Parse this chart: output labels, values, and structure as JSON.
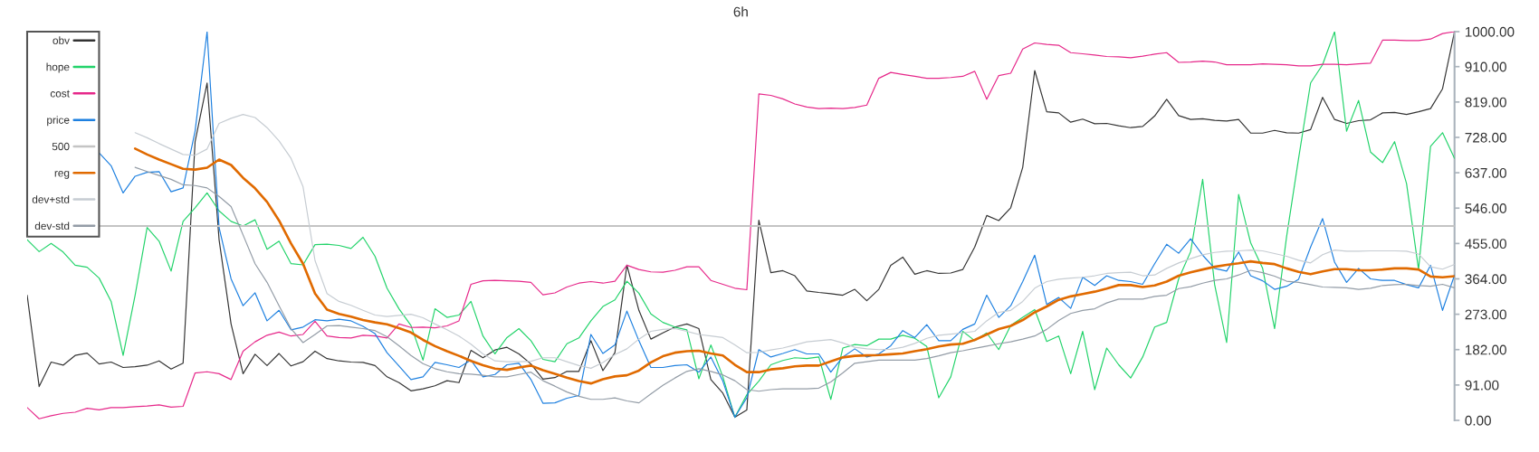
{
  "chart_data": {
    "type": "line",
    "title": "6h",
    "categories": [
      null,
      null,
      null,
      null,
      null,
      null,
      null,
      null,
      null,
      null,
      null,
      null,
      null,
      null,
      null,
      null,
      null,
      null,
      null,
      null,
      null,
      null,
      null,
      null,
      null,
      null,
      null,
      null,
      null,
      null,
      null,
      null,
      null,
      null,
      null,
      null,
      null,
      null,
      null,
      null,
      null,
      null,
      null,
      null,
      null,
      null,
      null,
      null,
      null,
      null,
      null,
      null,
      null,
      null,
      null,
      null,
      null,
      null,
      null,
      null,
      null,
      null,
      null,
      null,
      null,
      null,
      null,
      null,
      null,
      null,
      null,
      null,
      null,
      null,
      null,
      null,
      null,
      null,
      null,
      null,
      null,
      null,
      null,
      null,
      null,
      null,
      null,
      null,
      null,
      null,
      null,
      null,
      null,
      null,
      null,
      null,
      null,
      null,
      null,
      null,
      null,
      null,
      null,
      null,
      null,
      null,
      null,
      null,
      null,
      null,
      null,
      null,
      null,
      null,
      null,
      null,
      null,
      null,
      null,
      null
    ],
    "series": [
      {
        "name": "obv",
        "color": "#333333",
        "values": [
          322,
          87,
          150,
          142,
          167,
          173,
          145,
          150,
          136,
          138,
          142,
          153,
          132,
          147,
          717,
          868,
          465,
          248,
          120,
          170,
          141,
          172,
          140,
          151,
          178,
          159,
          153,
          150,
          149,
          141,
          112,
          97,
          76,
          81,
          89,
          102,
          97,
          180,
          161,
          181,
          188,
          171,
          145,
          106,
          110,
          126,
          126,
          205,
          128,
          174,
          399,
          283,
          209,
          225,
          240,
          248,
          236,
          105,
          70,
          8,
          27,
          515,
          380,
          385,
          372,
          333,
          329,
          326,
          322,
          337,
          308,
          337,
          399,
          420,
          376,
          385,
          378,
          379,
          388,
          446,
          527,
          514,
          547,
          651,
          900,
          794,
          791,
          767,
          775,
          763,
          764,
          758,
          753,
          756,
          783,
          826,
          784,
          774,
          776,
          772,
          770,
          774,
          739,
          739,
          746,
          740,
          739,
          748,
          831,
          774,
          764,
          771,
          773,
          791,
          792,
          787,
          794,
          802,
          853,
          1000
        ]
      },
      {
        "name": "hope",
        "color": "#22d36a",
        "values": [
          465,
          434,
          455,
          433,
          399,
          394,
          366,
          306,
          167,
          322,
          496,
          461,
          384,
          512,
          547,
          585,
          539,
          512,
          500,
          516,
          440,
          461,
          403,
          400,
          452,
          453,
          450,
          442,
          471,
          422,
          340,
          287,
          244,
          155,
          287,
          265,
          271,
          306,
          217,
          171,
          213,
          236,
          205,
          157,
          151,
          197,
          212,
          256,
          293,
          310,
          358,
          327,
          274,
          252,
          240,
          233,
          107,
          194,
          112,
          8,
          66,
          101,
          143,
          154,
          161,
          159,
          163,
          54,
          186,
          195,
          192,
          209,
          209,
          219,
          211,
          190,
          58,
          112,
          229,
          205,
          225,
          182,
          244,
          265,
          285,
          203,
          217,
          120,
          229,
          79,
          186,
          143,
          109,
          163,
          240,
          252,
          364,
          434,
          620,
          349,
          200,
          581,
          457,
          391,
          236,
          473,
          674,
          868,
          915,
          1000,
          744,
          823,
          690,
          663,
          717,
          609,
          388,
          705,
          740,
          674
        ]
      },
      {
        "name": "cost",
        "color": "#e6288a",
        "values": [
          33,
          4,
          12,
          18,
          21,
          31,
          27,
          33,
          33,
          35,
          37,
          40,
          34,
          36,
          122,
          125,
          120,
          105,
          178,
          202,
          219,
          227,
          217,
          221,
          255,
          217,
          213,
          212,
          219,
          217,
          212,
          248,
          239,
          240,
          238,
          243,
          256,
          350,
          359,
          360,
          359,
          358,
          355,
          323,
          328,
          343,
          353,
          357,
          353,
          358,
          399,
          388,
          382,
          381,
          386,
          395,
          395,
          360,
          350,
          340,
          336,
          840,
          836,
          827,
          814,
          806,
          802,
          803,
          802,
          805,
          811,
          880,
          895,
          890,
          885,
          880,
          880,
          882,
          885,
          898,
          826,
          887,
          893,
          955,
          971,
          967,
          965,
          946,
          943,
          940,
          936,
          935,
          933,
          937,
          942,
          946,
          921,
          922,
          924,
          922,
          915,
          915,
          915,
          917,
          916,
          915,
          912,
          912,
          916,
          916,
          915,
          917,
          919,
          978,
          978,
          977,
          977,
          981,
          995,
          1000
        ]
      },
      {
        "name": "price",
        "color": "#1e80e0",
        "values": [
          null,
          null,
          null,
          null,
          null,
          null,
          688,
          655,
          585,
          628,
          638,
          640,
          588,
          598,
          744,
          1000,
          496,
          364,
          295,
          328,
          256,
          283,
          233,
          240,
          259,
          256,
          260,
          256,
          242,
          223,
          174,
          140,
          105,
          112,
          149,
          143,
          136,
          155,
          112,
          118,
          143,
          147,
          105,
          44,
          45,
          57,
          64,
          221,
          172,
          194,
          281,
          205,
          136,
          136,
          141,
          143,
          124,
          163,
          101,
          8,
          58,
          182,
          163,
          172,
          182,
          171,
          171,
          124,
          163,
          184,
          163,
          171,
          192,
          231,
          213,
          246,
          205,
          205,
          234,
          248,
          322,
          265,
          295,
          357,
          425,
          298,
          316,
          288,
          368,
          347,
          372,
          360,
          357,
          350,
          403,
          453,
          430,
          467,
          425,
          391,
          384,
          433,
          372,
          359,
          337,
          345,
          363,
          446,
          519,
          407,
          355,
          391,
          364,
          360,
          360,
          349,
          341,
          399,
          283,
          374
        ]
      },
      {
        "name": "500",
        "color": "#c4c4c4",
        "values": [
          null,
          null,
          null,
          null,
          null,
          null,
          500,
          500,
          500,
          500,
          500,
          500,
          500,
          500,
          500,
          500,
          500,
          500,
          500,
          500,
          500,
          500,
          500,
          500,
          500,
          500,
          500,
          500,
          500,
          500,
          500,
          500,
          500,
          500,
          500,
          500,
          500,
          500,
          500,
          500,
          500,
          500,
          500,
          500,
          500,
          500,
          500,
          500,
          500,
          500,
          500,
          500,
          500,
          500,
          500,
          500,
          500,
          500,
          500,
          500,
          500,
          500,
          500,
          500,
          500,
          500,
          500,
          500,
          500,
          500,
          500,
          500,
          500,
          500,
          500,
          500,
          500,
          500,
          500,
          500,
          500,
          500,
          500,
          500,
          500,
          500,
          500,
          500,
          500,
          500,
          500,
          500,
          500,
          500,
          500,
          500,
          500,
          500,
          500,
          500,
          500,
          500,
          500,
          500,
          500,
          500,
          500,
          500,
          500,
          500,
          500,
          500,
          500,
          500,
          500,
          500,
          500,
          500,
          500,
          500
        ]
      },
      {
        "name": "reg",
        "color": "#e06a00",
        "values": [
          null,
          null,
          null,
          null,
          null,
          null,
          null,
          null,
          null,
          699,
          684,
          671,
          659,
          647,
          645,
          650,
          671,
          657,
          624,
          597,
          562,
          514,
          455,
          403,
          326,
          285,
          274,
          267,
          258,
          252,
          247,
          237,
          226,
          207,
          191,
          178,
          166,
          153,
          142,
          133,
          130,
          136,
          141,
          129,
          120,
          110,
          101,
          95,
          106,
          113,
          116,
          128,
          149,
          165,
          174,
          178,
          179,
          172,
          167,
          143,
          124,
          124,
          131,
          134,
          139,
          141,
          141,
          152,
          162,
          166,
          167,
          168,
          170,
          172,
          178,
          183,
          190,
          195,
          197,
          207,
          221,
          235,
          243,
          258,
          278,
          293,
          310,
          319,
          325,
          331,
          339,
          348,
          348,
          343,
          347,
          357,
          372,
          381,
          388,
          395,
          400,
          404,
          409,
          405,
          402,
          391,
          382,
          376,
          383,
          389,
          389,
          386,
          386,
          388,
          391,
          391,
          388,
          370,
          368,
          371
        ]
      },
      {
        "name": "dev+std",
        "color": "#c6ccd2",
        "values": [
          null,
          null,
          null,
          null,
          null,
          null,
          null,
          null,
          null,
          740,
          727,
          712,
          698,
          684,
          682,
          698,
          764,
          777,
          787,
          779,
          753,
          719,
          674,
          601,
          411,
          326,
          306,
          296,
          283,
          271,
          267,
          270,
          273,
          264,
          248,
          233,
          217,
          196,
          171,
          153,
          151,
          151,
          152,
          161,
          161,
          151,
          141,
          134,
          149,
          169,
          184,
          209,
          229,
          234,
          236,
          229,
          221,
          217,
          213,
          194,
          174,
          175,
          181,
          186,
          194,
          202,
          205,
          208,
          199,
          188,
          184,
          182,
          183,
          188,
          198,
          211,
          219,
          222,
          225,
          229,
          256,
          278,
          283,
          306,
          340,
          357,
          363,
          366,
          368,
          372,
          378,
          380,
          381,
          372,
          374,
          391,
          405,
          416,
          426,
          432,
          435,
          436,
          438,
          436,
          429,
          422,
          412,
          405,
          426,
          438,
          435,
          435,
          436,
          436,
          436,
          435,
          428,
          395,
          389,
          401
        ]
      },
      {
        "name": "dev-std",
        "color": "#939ca6",
        "values": [
          null,
          null,
          null,
          null,
          null,
          null,
          null,
          null,
          null,
          651,
          640,
          630,
          620,
          606,
          604,
          598,
          576,
          550,
          477,
          403,
          355,
          295,
          236,
          200,
          221,
          243,
          244,
          240,
          236,
          231,
          215,
          192,
          167,
          146,
          133,
          125,
          120,
          119,
          116,
          112,
          112,
          118,
          124,
          102,
          88,
          73,
          62,
          54,
          54,
          58,
          50,
          45,
          68,
          90,
          109,
          126,
          133,
          126,
          117,
          102,
          79,
          75,
          79,
          81,
          81,
          81,
          83,
          99,
          122,
          147,
          151,
          155,
          155,
          155,
          155,
          159,
          166,
          174,
          179,
          185,
          191,
          197,
          202,
          209,
          217,
          234,
          257,
          275,
          283,
          287,
          302,
          312,
          312,
          312,
          319,
          322,
          339,
          344,
          353,
          360,
          364,
          374,
          386,
          380,
          371,
          358,
          355,
          349,
          343,
          342,
          341,
          337,
          340,
          347,
          349,
          350,
          347,
          345,
          350,
          341
        ]
      }
    ],
    "ylim": [
      0,
      1000
    ],
    "yticks": [
      {
        "value": 0,
        "label": "0.00"
      },
      {
        "value": 91,
        "label": "91.00"
      },
      {
        "value": 182,
        "label": "182.00"
      },
      {
        "value": 273,
        "label": "273.00"
      },
      {
        "value": 364,
        "label": "364.00"
      },
      {
        "value": 455,
        "label": "455.00"
      },
      {
        "value": 546,
        "label": "546.00"
      },
      {
        "value": 637,
        "label": "637.00"
      },
      {
        "value": 728,
        "label": "728.00"
      },
      {
        "value": 819,
        "label": "819.00"
      },
      {
        "value": 910,
        "label": "910.00"
      },
      {
        "value": 1000,
        "label": "1000.00"
      }
    ],
    "tick_labels": "y",
    "legend": "top left"
  }
}
